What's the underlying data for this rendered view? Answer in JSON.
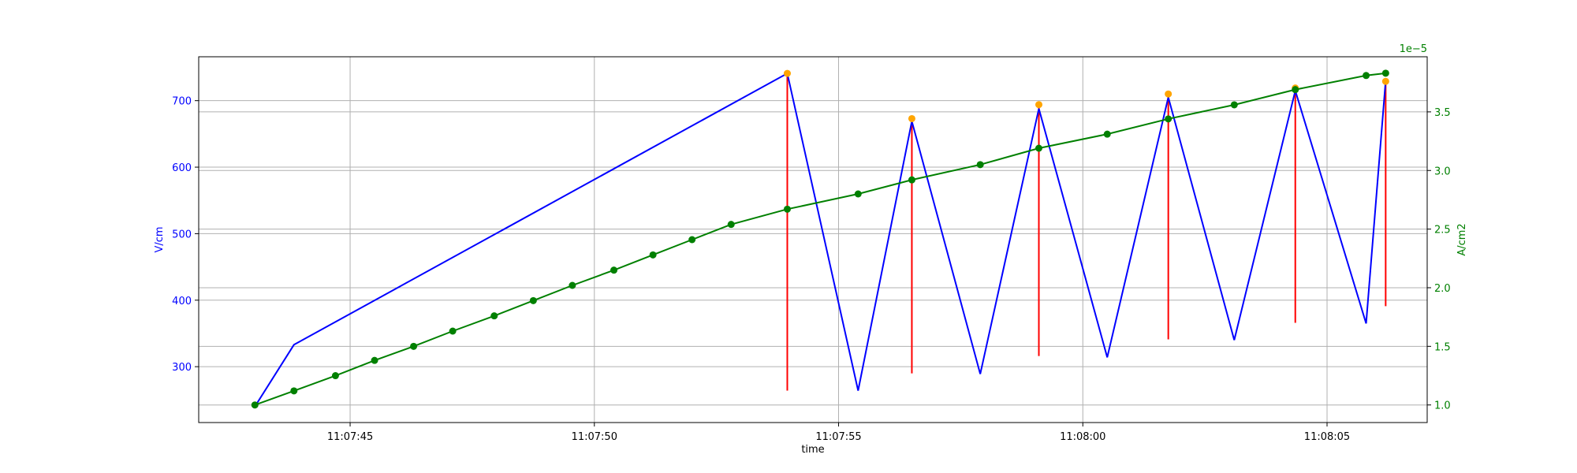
{
  "chart_data": {
    "type": "line",
    "xlabel": "time",
    "ylabel_left": "V/cm",
    "ylabel_right": "A/cm2",
    "right_axis_multiplier": "1e−5",
    "xlim": [
      -1.1,
      24.05
    ],
    "ylim_left": [
      216,
      766
    ],
    "ylim_right": [
      0.85,
      3.97
    ],
    "x_tick_labels": [
      {
        "x": 2,
        "label": "11:07:45"
      },
      {
        "x": 7,
        "label": "11:07:50"
      },
      {
        "x": 12,
        "label": "11:07:55"
      },
      {
        "x": 17,
        "label": "11:08:00"
      },
      {
        "x": 22,
        "label": "11:08:05"
      }
    ],
    "y_left_ticks": [
      300,
      400,
      500,
      600,
      700
    ],
    "y_right_ticks": [
      "1.0",
      "1.5",
      "2.0",
      "2.5",
      "3.0",
      "3.5"
    ],
    "grid": true,
    "colors": {
      "voltage": "#0000ff",
      "current": "#008000",
      "peaks": "#ffa500",
      "spikes": "#ff0000",
      "grid": "#b0b0b0",
      "axes": "#000000"
    },
    "series": [
      {
        "axis": "left",
        "x": [
          0.05,
          0.85,
          10.95,
          12.4,
          13.5,
          14.9,
          16.1,
          17.5,
          18.75,
          20.1,
          21.35,
          22.8,
          23.2
        ],
        "values": [
          240,
          333,
          741,
          264,
          669,
          289,
          688,
          314,
          705,
          340,
          715,
          365,
          730
        ]
      },
      {
        "axis": "right",
        "x": [
          0.05,
          0.85,
          1.7,
          2.5,
          3.3,
          4.1,
          4.95,
          5.75,
          6.55,
          7.4,
          8.2,
          9.0,
          9.8,
          10.95,
          12.4,
          13.5,
          14.9,
          16.1,
          17.5,
          18.75,
          20.1,
          21.35,
          22.8,
          23.2
        ],
        "values": [
          1.0,
          1.12,
          1.25,
          1.38,
          1.5,
          1.63,
          1.76,
          1.89,
          2.02,
          2.15,
          2.28,
          2.41,
          2.54,
          2.67,
          2.8,
          2.92,
          3.05,
          3.19,
          3.31,
          3.44,
          3.56,
          3.69,
          3.81,
          3.83
        ]
      }
    ],
    "peaks": {
      "x": [
        10.95,
        13.5,
        16.1,
        18.75,
        21.35,
        23.2
      ],
      "values": [
        741,
        673,
        694,
        710,
        719,
        729
      ]
    },
    "spikes": {
      "x": [
        10.95,
        13.5,
        16.1,
        18.75,
        21.35,
        23.2
      ],
      "top": [
        741,
        673,
        694,
        710,
        719,
        729
      ],
      "bottom": [
        264,
        290,
        316,
        341,
        366,
        391
      ]
    }
  }
}
